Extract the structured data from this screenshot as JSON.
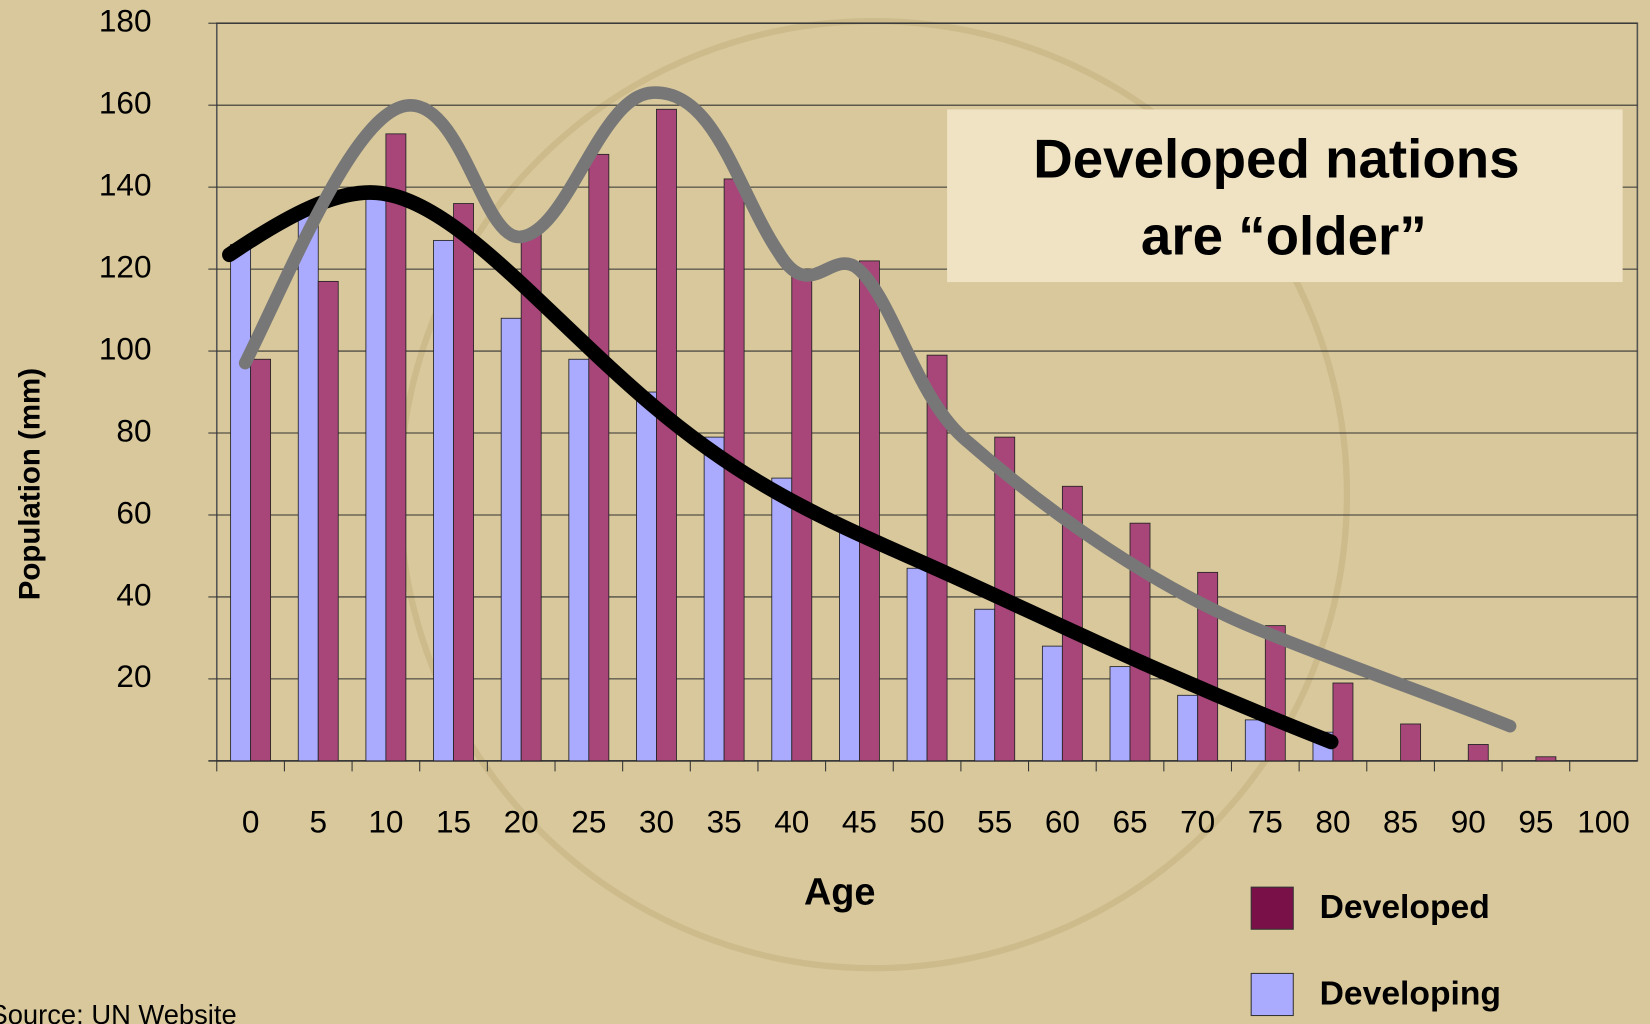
{
  "chart_data": {
    "type": "bar",
    "y_label": "Population (mm)",
    "x_label": "Age",
    "annotation": [
      "Developed nations",
      "are “older”"
    ],
    "source": "Source: UN Website",
    "categories": [
      "0",
      "5",
      "10",
      "15",
      "20",
      "25",
      "30",
      "35",
      "40",
      "45",
      "50",
      "55",
      "60",
      "65",
      "70",
      "75",
      "80",
      "85",
      "90",
      "95",
      "100"
    ],
    "series": [
      {
        "name": "Developed",
        "color": "#a8467a",
        "legend_color": "#7a1048",
        "values": [
          98,
          117,
          153,
          136,
          129,
          148,
          159,
          142,
          120,
          122,
          99,
          79,
          67,
          58,
          46,
          33,
          19,
          9,
          4,
          1,
          0
        ]
      },
      {
        "name": "Developing",
        "color": "#aaaaff",
        "values": [
          126,
          133,
          139,
          127,
          108,
          98,
          90,
          79,
          69,
          57,
          47,
          37,
          28,
          23,
          16,
          10,
          7,
          0,
          0,
          0,
          0
        ]
      }
    ],
    "ylim": [
      0,
      180
    ],
    "yticks": [
      20,
      40,
      60,
      80,
      100,
      120,
      140,
      160,
      180
    ],
    "grid": true
  }
}
